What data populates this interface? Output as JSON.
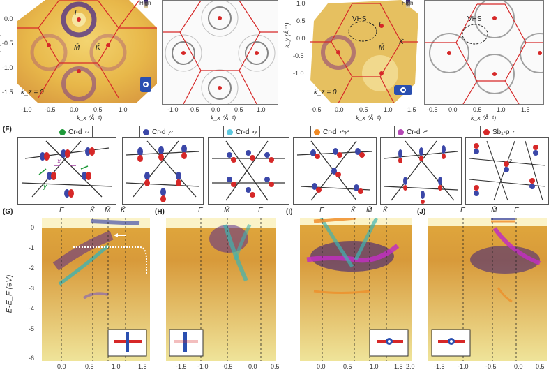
{
  "colors": {
    "accent_red": "#d62828",
    "band_blue": "#3b47a8",
    "band_teal": "#3fb3b0",
    "band_magenta": "#c02fc0",
    "band_orange": "#f08a24",
    "map_bg": "#e8c25a"
  },
  "top": {
    "colorbar_label": "High",
    "ky_label": "k_y (Å⁻¹)",
    "kx_label": "k_x (Å⁻¹)",
    "kz_label": "k_z = 0",
    "left_yticks": [
      "0.0",
      "-0.5",
      "-1.0",
      "-1.5"
    ],
    "left_xticks": [
      "-1.0",
      "-0.5",
      "0.0",
      "0.5",
      "1.0"
    ],
    "right_yticks": [
      "1.0",
      "0.5",
      "0.0",
      "-0.5",
      "-1.0"
    ],
    "right_xticks": [
      "-0.5",
      "0.0",
      "0.5",
      "1.0",
      "1.5"
    ],
    "sym_gamma": "Γ̄",
    "sym_M": "M̄",
    "sym_K": "K̄",
    "vhs": "VHS"
  },
  "orbitals": {
    "panel_label": "(F)",
    "items": [
      {
        "label": "Cr-d",
        "sub": "xz",
        "color": "#1f9a3a"
      },
      {
        "label": "Cr-d",
        "sub": "yz",
        "color": "#3b47a8"
      },
      {
        "label": "Cr-d",
        "sub": "xy",
        "color": "#5ec9e0"
      },
      {
        "label": "Cr-d",
        "sub": "x²-y²",
        "color": "#f08a24"
      },
      {
        "label": "Cr-d",
        "sub": "z²",
        "color": "#b548b5"
      },
      {
        "label": "Sb₁-p",
        "sub": "z",
        "color": "#d62828"
      }
    ],
    "axis_x": "x",
    "axis_y": "y",
    "axis_z": "z"
  },
  "bands": {
    "ylabel": "E-E_F (eV)",
    "yticks": [
      "0",
      "-1",
      "-2",
      "-3",
      "-4",
      "-5",
      "-6"
    ],
    "panels": [
      {
        "label": "(G)",
        "sym": [
          "Γ̄",
          "K̄",
          "M̄",
          "K̄"
        ],
        "xticks": [
          "0.0",
          "0.5",
          "1.0",
          "1.5"
        ]
      },
      {
        "label": "(H)",
        "sym": [
          "Γ̄",
          "M̄",
          "Γ̄"
        ],
        "xticks": [
          "-1.5",
          "-1.0",
          "-0.5",
          "0.0",
          "0.5"
        ]
      },
      {
        "label": "(I)",
        "sym": [
          "Γ̄",
          "K̄",
          "M̄",
          "K̄"
        ],
        "xticks": [
          "0.0",
          "0.5",
          "1.0",
          "1.5",
          "2.0"
        ]
      },
      {
        "label": "(J)",
        "sym": [
          "Γ̄",
          "M̄",
          "Γ̄"
        ],
        "xticks": [
          "-1.5",
          "-1.0",
          "-0.5",
          "0.0",
          "0.5"
        ]
      }
    ]
  }
}
